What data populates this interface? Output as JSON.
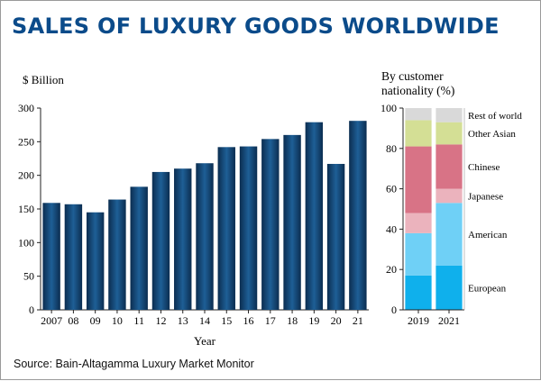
{
  "title": "SALES OF LUXURY GOODS WORLDWIDE",
  "source": "Source: Bain-Altagamma Luxury Market Monitor",
  "colors": {
    "title": "#0b4b8a",
    "bar_dark": "#0b2d50",
    "bar_light": "#1e5f96",
    "European": "#0fb0ec",
    "American": "#6fd0f6",
    "Japanese": "#ebb3bd",
    "Chinese": "#d87386",
    "Other Asian": "#d4df95",
    "Rest of world": "#d9d9d9"
  },
  "chart_data": [
    {
      "type": "bar",
      "ylabel": "$ Billion",
      "xlabel": "Year",
      "categories": [
        "2007",
        "08",
        "09",
        "10",
        "11",
        "12",
        "13",
        "14",
        "15",
        "16",
        "17",
        "18",
        "19",
        "20",
        "21"
      ],
      "values": [
        159,
        157,
        145,
        164,
        183,
        205,
        210,
        218,
        242,
        243,
        254,
        260,
        279,
        217,
        281
      ],
      "ylim": [
        0,
        300
      ],
      "yticks": [
        "0",
        "50",
        "100",
        "150",
        "200",
        "250",
        "300"
      ],
      "grid": false
    },
    {
      "type": "bar",
      "stacked": true,
      "title": "By customer nationality (%)",
      "categories": [
        "2019",
        "2021"
      ],
      "ylim": [
        0,
        100
      ],
      "yticks": [
        "0",
        "20",
        "40",
        "60",
        "80",
        "100"
      ],
      "series": [
        {
          "name": "European",
          "values": [
            17,
            22
          ]
        },
        {
          "name": "American",
          "values": [
            21,
            31
          ]
        },
        {
          "name": "Japanese",
          "values": [
            10,
            7
          ]
        },
        {
          "name": "Chinese",
          "values": [
            33,
            22
          ]
        },
        {
          "name": "Other Asian",
          "values": [
            13,
            11
          ]
        },
        {
          "name": "Rest of world",
          "values": [
            6,
            7
          ]
        }
      ]
    }
  ]
}
